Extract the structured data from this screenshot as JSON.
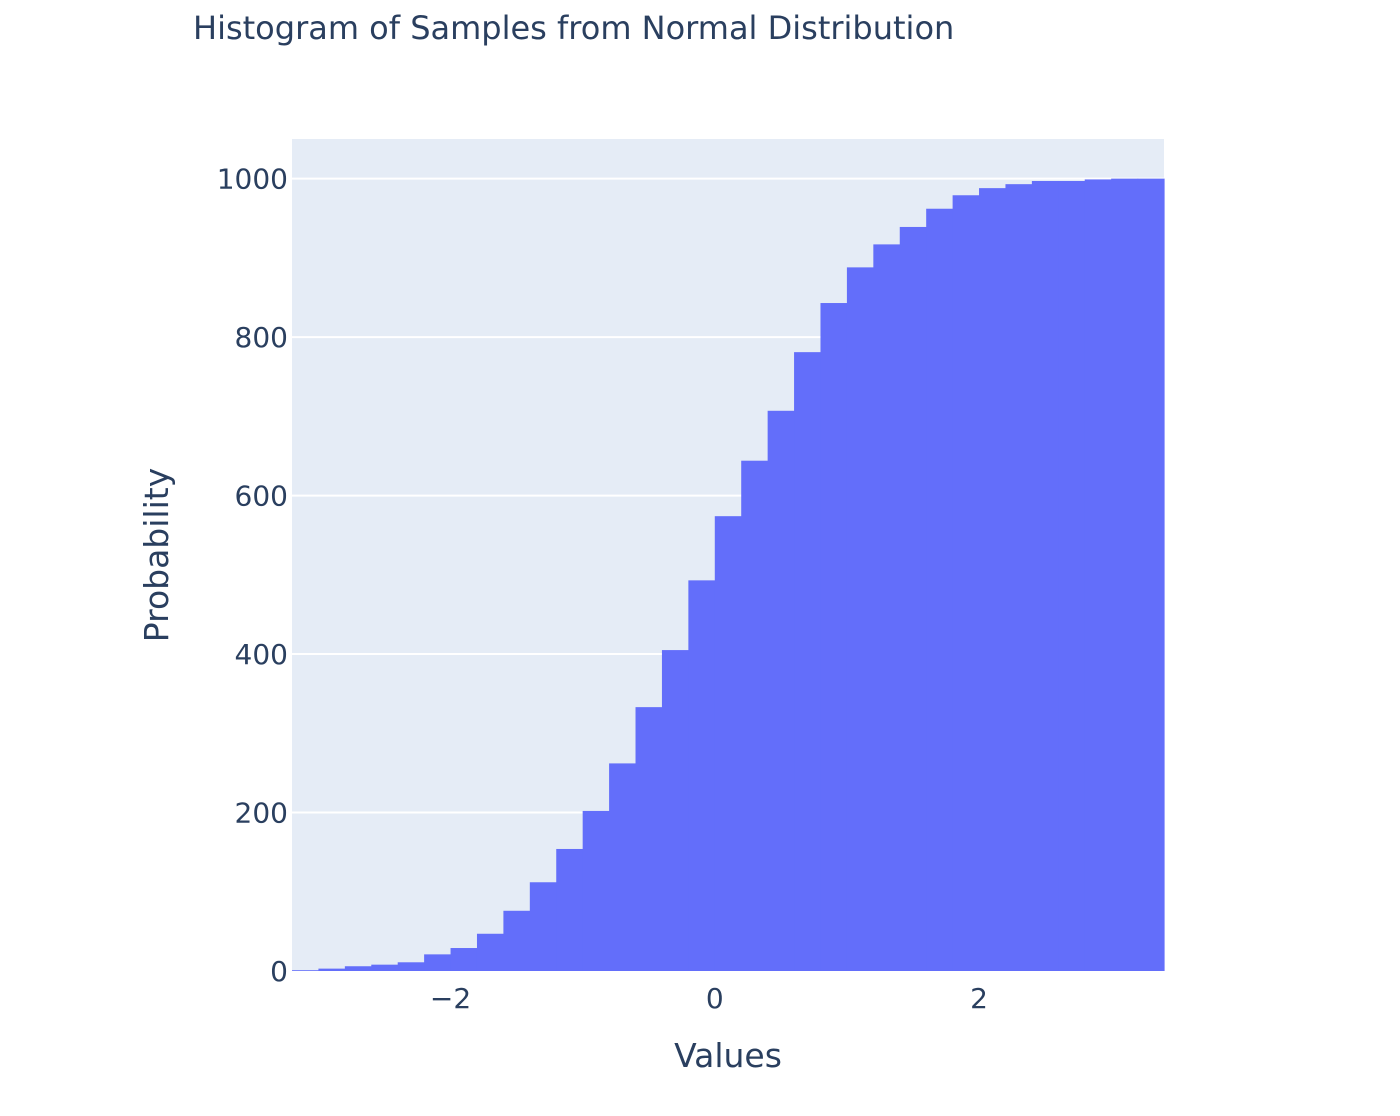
{
  "chart_data": {
    "type": "bar",
    "subtype": "histogram-cumulative",
    "title": "Histogram of Samples from Normal Distribution",
    "xlabel": "Values",
    "ylabel": "Probability",
    "xlim": [
      -3.2,
      3.4
    ],
    "ylim": [
      0,
      1050
    ],
    "x_ticks": [
      {
        "value": -2,
        "label": "−2"
      },
      {
        "value": 0,
        "label": "0"
      },
      {
        "value": 2,
        "label": "2"
      }
    ],
    "y_ticks": [
      {
        "value": 0,
        "label": "0"
      },
      {
        "value": 200,
        "label": "200"
      },
      {
        "value": 400,
        "label": "400"
      },
      {
        "value": 600,
        "label": "600"
      },
      {
        "value": 800,
        "label": "800"
      },
      {
        "value": 1000,
        "label": "1000"
      }
    ],
    "bin_width": 0.2,
    "bins": [
      {
        "x0": -3.2,
        "x1": -3.0,
        "value": 1
      },
      {
        "x0": -3.0,
        "x1": -2.8,
        "value": 3
      },
      {
        "x0": -2.8,
        "x1": -2.6,
        "value": 6
      },
      {
        "x0": -2.6,
        "x1": -2.4,
        "value": 8
      },
      {
        "x0": -2.4,
        "x1": -2.2,
        "value": 11
      },
      {
        "x0": -2.2,
        "x1": -2.0,
        "value": 21
      },
      {
        "x0": -2.0,
        "x1": -1.8,
        "value": 29
      },
      {
        "x0": -1.8,
        "x1": -1.6,
        "value": 47
      },
      {
        "x0": -1.6,
        "x1": -1.4,
        "value": 76
      },
      {
        "x0": -1.4,
        "x1": -1.2,
        "value": 112
      },
      {
        "x0": -1.2,
        "x1": -1.0,
        "value": 154
      },
      {
        "x0": -1.0,
        "x1": -0.8,
        "value": 202
      },
      {
        "x0": -0.8,
        "x1": -0.6,
        "value": 262
      },
      {
        "x0": -0.6,
        "x1": -0.4,
        "value": 333
      },
      {
        "x0": -0.4,
        "x1": -0.2,
        "value": 405
      },
      {
        "x0": -0.2,
        "x1": 0.0,
        "value": 493
      },
      {
        "x0": 0.0,
        "x1": 0.2,
        "value": 574
      },
      {
        "x0": 0.2,
        "x1": 0.4,
        "value": 644
      },
      {
        "x0": 0.4,
        "x1": 0.6,
        "value": 707
      },
      {
        "x0": 0.6,
        "x1": 0.8,
        "value": 781
      },
      {
        "x0": 0.8,
        "x1": 1.0,
        "value": 843
      },
      {
        "x0": 1.0,
        "x1": 1.2,
        "value": 888
      },
      {
        "x0": 1.2,
        "x1": 1.4,
        "value": 917
      },
      {
        "x0": 1.4,
        "x1": 1.6,
        "value": 939
      },
      {
        "x0": 1.6,
        "x1": 1.8,
        "value": 962
      },
      {
        "x0": 1.8,
        "x1": 2.0,
        "value": 979
      },
      {
        "x0": 2.0,
        "x1": 2.2,
        "value": 988
      },
      {
        "x0": 2.2,
        "x1": 2.4,
        "value": 993
      },
      {
        "x0": 2.4,
        "x1": 2.6,
        "value": 997
      },
      {
        "x0": 2.6,
        "x1": 2.8,
        "value": 997
      },
      {
        "x0": 2.8,
        "x1": 3.0,
        "value": 999
      },
      {
        "x0": 3.0,
        "x1": 3.2,
        "value": 1000
      },
      {
        "x0": 3.2,
        "x1": 3.4,
        "value": 1000
      }
    ],
    "grid": true,
    "legend": "none",
    "colors": {
      "bar": "#636efa",
      "plot_background": "#e5ecf6",
      "gridline": "#ffffff",
      "text": "#2a3f5f"
    }
  }
}
